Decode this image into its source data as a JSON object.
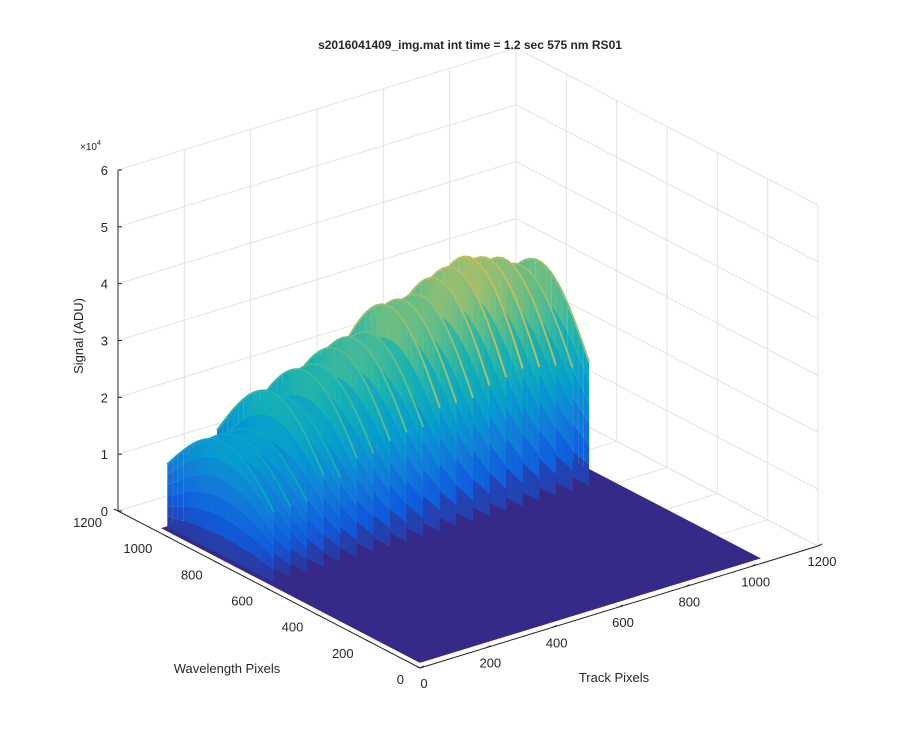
{
  "chart_data": {
    "type": "surface3d",
    "title": "s2016041409_img.mat int time = 1.2 sec  575 nm RS01",
    "xlabel": "Track Pixels",
    "ylabel": "Wavelength Pixels",
    "zlabel": "Signal (ADU)",
    "z_exponent_label": "×10",
    "z_exponent_power": "4",
    "x_ticks": [
      "0",
      "200",
      "400",
      "600",
      "800",
      "1000",
      "1200"
    ],
    "y_ticks": [
      "0",
      "200",
      "400",
      "600",
      "800",
      "1000",
      "1200"
    ],
    "z_ticks": [
      "0",
      "1",
      "2",
      "3",
      "4",
      "5",
      "6"
    ],
    "xlim": [
      0,
      1200
    ],
    "ylim": [
      0,
      1200
    ],
    "zlim": [
      0,
      60000
    ],
    "grid": true,
    "colormap": "parula",
    "baseline_color": "#352a87",
    "surface": {
      "x_extent": [
        0,
        1024
      ],
      "y_extent": [
        0,
        1024
      ],
      "base_level": 1000,
      "signal_y_range": [
        600,
        1024
      ],
      "signal_x_range": [
        20,
        1000
      ],
      "fiber_peaks": [
        {
          "x": 25,
          "peak": 21000
        },
        {
          "x": 75,
          "peak": 21000
        },
        {
          "x": 125,
          "peak": 21000
        },
        {
          "x": 175,
          "peak": 27000
        },
        {
          "x": 225,
          "peak": 25000
        },
        {
          "x": 275,
          "peak": 29000
        },
        {
          "x": 325,
          "peak": 29000
        },
        {
          "x": 375,
          "peak": 31000
        },
        {
          "x": 425,
          "peak": 32000
        },
        {
          "x": 475,
          "peak": 32000
        },
        {
          "x": 525,
          "peak": 36000
        },
        {
          "x": 575,
          "peak": 36000
        },
        {
          "x": 625,
          "peak": 36000
        },
        {
          "x": 675,
          "peak": 38000
        },
        {
          "x": 725,
          "peak": 39000
        },
        {
          "x": 775,
          "peak": 40000
        },
        {
          "x": 825,
          "peak": 39000
        },
        {
          "x": 875,
          "peak": 38000
        },
        {
          "x": 925,
          "peak": 36000
        },
        {
          "x": 975,
          "peak": 36000
        }
      ]
    }
  }
}
